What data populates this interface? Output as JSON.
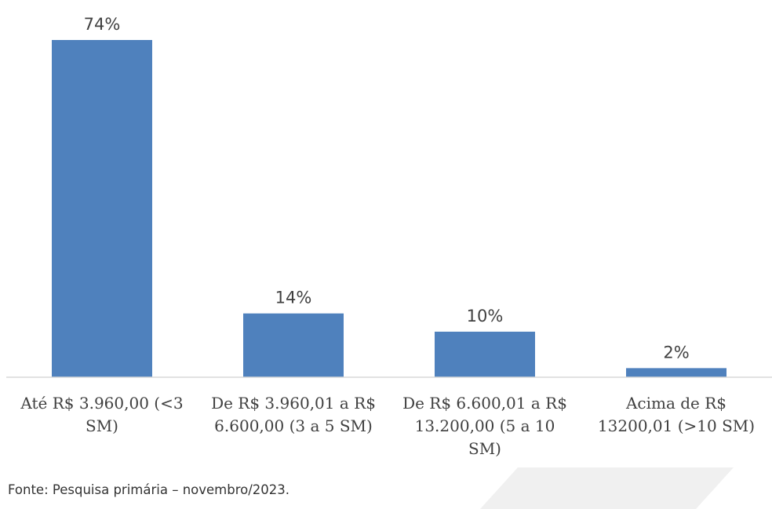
{
  "chart_data": {
    "type": "bar",
    "categories": [
      [
        "Até R$ 3.960,00 (<3",
        "SM)"
      ],
      [
        "De R$ 3.960,01 a R$",
        "6.600,00 (3 a 5 SM)"
      ],
      [
        "De R$ 6.600,01 a R$",
        "13.200,00 (5 a 10",
        "SM)"
      ],
      [
        "Acima de R$",
        "13200,01 (>10 SM)"
      ]
    ],
    "values": [
      74,
      14,
      10,
      2
    ],
    "data_labels": [
      "74%",
      "14%",
      "10%",
      "2%"
    ],
    "title": "",
    "xlabel": "",
    "ylabel": "",
    "ylim": [
      0,
      80
    ],
    "grid": false,
    "legend": "none",
    "bar_color": "#4f81bd",
    "axis_color": "#d9d9d9"
  },
  "source_note": "Fonte: Pesquisa primária – novembro/2023."
}
